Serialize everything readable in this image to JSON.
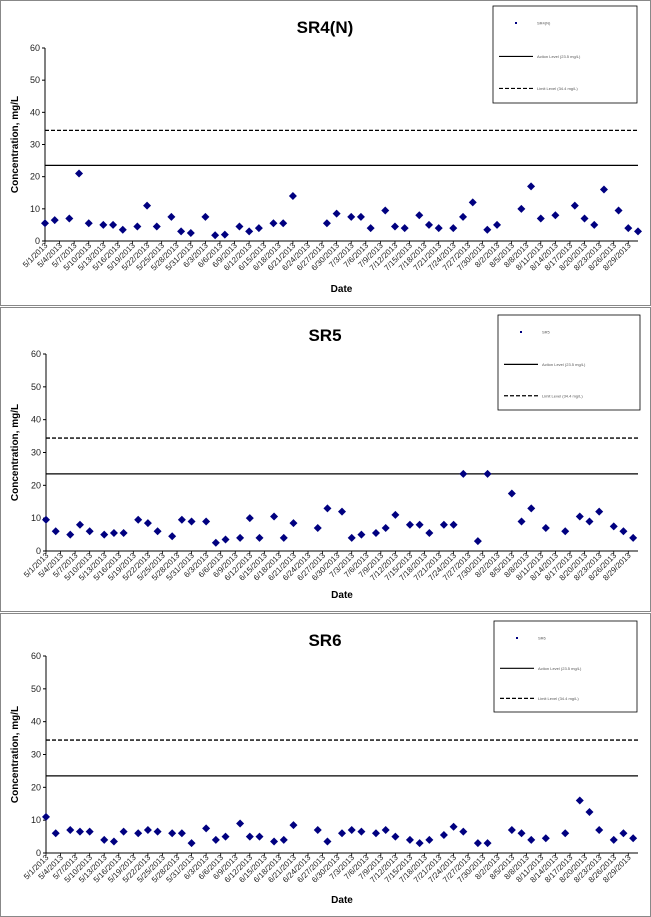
{
  "chart_data": [
    {
      "type": "scatter",
      "title": "SR4(N)",
      "xlabel": "Date",
      "ylabel": "Concentration, mg/L",
      "ylim": [
        0,
        60
      ],
      "yticks": [
        "0",
        "10",
        "20",
        "30",
        "40",
        "50",
        "60"
      ],
      "xlim": [
        "5/1/2013",
        "8/31/2013"
      ],
      "xticks": [
        "5/1/2013",
        "5/4/2013",
        "5/7/2013",
        "5/10/2013",
        "5/13/2013",
        "5/16/2013",
        "5/19/2013",
        "5/22/2013",
        "5/25/2013",
        "5/28/2013",
        "5/31/2013",
        "6/3/2013",
        "6/6/2013",
        "6/9/2013",
        "6/12/2013",
        "6/15/2013",
        "6/18/2013",
        "6/21/2013",
        "6/24/2013",
        "6/27/2013",
        "6/30/2013",
        "7/3/2013",
        "7/6/2013",
        "7/9/2013",
        "7/12/2013",
        "7/15/2013",
        "7/18/2013",
        "7/21/2013",
        "7/24/2013",
        "7/27/2013",
        "7/30/2013",
        "8/2/2013",
        "8/5/2013",
        "8/8/2013",
        "8/11/2013",
        "8/14/2013",
        "8/17/2013",
        "8/20/2013",
        "8/23/2013",
        "8/26/2013",
        "8/29/2013"
      ],
      "marker_color": "#000080",
      "legend_position": "top-right",
      "legend": [
        "SR4(N)",
        "Action Level (23.5 mg/L)",
        "Limit Level (34.4 mg/L)"
      ],
      "reference_lines": [
        {
          "value": 23.5,
          "style": "solid"
        },
        {
          "value": 34.4,
          "style": "dashed"
        }
      ],
      "series": [
        {
          "points": [
            [
              "5/1/2013",
              5.5
            ],
            [
              "5/3/2013",
              6.5
            ],
            [
              "5/6/2013",
              7
            ],
            [
              "5/8/2013",
              21
            ],
            [
              "5/10/2013",
              5.5
            ],
            [
              "5/13/2013",
              5
            ],
            [
              "5/15/2013",
              5
            ],
            [
              "5/17/2013",
              3.5
            ],
            [
              "5/20/2013",
              4.5
            ],
            [
              "5/22/2013",
              11
            ],
            [
              "5/24/2013",
              4.5
            ],
            [
              "5/27/2013",
              7.5
            ],
            [
              "5/29/2013",
              3
            ],
            [
              "5/31/2013",
              2.5
            ],
            [
              "6/3/2013",
              7.5
            ],
            [
              "6/5/2013",
              1.8
            ],
            [
              "6/7/2013",
              2
            ],
            [
              "6/10/2013",
              4.5
            ],
            [
              "6/12/2013",
              3
            ],
            [
              "6/14/2013",
              4
            ],
            [
              "6/17/2013",
              5.5
            ],
            [
              "6/19/2013",
              5.5
            ],
            [
              "6/21/2013",
              14
            ],
            [
              "6/28/2013",
              5.5
            ],
            [
              "6/30/2013",
              8.5
            ],
            [
              "7/3/2013",
              7.5
            ],
            [
              "7/5/2013",
              7.5
            ],
            [
              "7/7/2013",
              4
            ],
            [
              "7/10/2013",
              9.5
            ],
            [
              "7/12/2013",
              4.5
            ],
            [
              "7/14/2013",
              4
            ],
            [
              "7/17/2013",
              8
            ],
            [
              "7/19/2013",
              5
            ],
            [
              "7/21/2013",
              4
            ],
            [
              "7/24/2013",
              4
            ],
            [
              "7/26/2013",
              7.5
            ],
            [
              "7/28/2013",
              12
            ],
            [
              "7/31/2013",
              3.5
            ],
            [
              "8/2/2013",
              5
            ],
            [
              "8/7/2013",
              10
            ],
            [
              "8/9/2013",
              17
            ],
            [
              "8/11/2013",
              7
            ],
            [
              "8/14/2013",
              8
            ],
            [
              "8/18/2013",
              11
            ],
            [
              "8/20/2013",
              7
            ],
            [
              "8/22/2013",
              5
            ],
            [
              "8/24/2013",
              16
            ],
            [
              "8/27/2013",
              9.5
            ],
            [
              "8/29/2013",
              4
            ],
            [
              "8/31/2013",
              3
            ]
          ]
        }
      ]
    },
    {
      "type": "scatter",
      "title": "SR5",
      "xlabel": "Date",
      "ylabel": "Concentration, mg/L",
      "ylim": [
        0,
        60
      ],
      "yticks": [
        "0",
        "10",
        "20",
        "30",
        "40",
        "50",
        "60"
      ],
      "xlim": [
        "5/1/2013",
        "8/31/2013"
      ],
      "xticks": [
        "5/1/2013",
        "5/4/2013",
        "5/7/2013",
        "5/10/2013",
        "5/13/2013",
        "5/16/2013",
        "5/19/2013",
        "5/22/2013",
        "5/25/2013",
        "5/28/2013",
        "5/31/2013",
        "6/3/2013",
        "6/6/2013",
        "6/9/2013",
        "6/12/2013",
        "6/15/2013",
        "6/18/2013",
        "6/21/2013",
        "6/24/2013",
        "6/27/2013",
        "6/30/2013",
        "7/3/2013",
        "7/6/2013",
        "7/9/2013",
        "7/12/2013",
        "7/15/2013",
        "7/18/2013",
        "7/21/2013",
        "7/24/2013",
        "7/27/2013",
        "7/30/2013",
        "8/2/2013",
        "8/5/2013",
        "8/8/2013",
        "8/11/2013",
        "8/14/2013",
        "8/17/2013",
        "8/20/2013",
        "8/23/2013",
        "8/26/2013",
        "8/29/2013"
      ],
      "marker_color": "#000080",
      "legend_position": "top-right",
      "legend": [
        "SR5",
        "Action Level (23.5 mg/L)",
        "Limit Level (34.4 mg/L)"
      ],
      "reference_lines": [
        {
          "value": 23.5,
          "style": "solid"
        },
        {
          "value": 34.4,
          "style": "dashed"
        }
      ],
      "series": [
        {
          "points": [
            [
              "5/1/2013",
              9.5
            ],
            [
              "5/3/2013",
              6
            ],
            [
              "5/6/2013",
              5
            ],
            [
              "5/8/2013",
              8
            ],
            [
              "5/10/2013",
              6
            ],
            [
              "5/13/2013",
              5
            ],
            [
              "5/15/2013",
              5.5
            ],
            [
              "5/17/2013",
              5.5
            ],
            [
              "5/20/2013",
              9.5
            ],
            [
              "5/22/2013",
              8.5
            ],
            [
              "5/24/2013",
              6
            ],
            [
              "5/27/2013",
              4.5
            ],
            [
              "5/29/2013",
              9.5
            ],
            [
              "5/31/2013",
              9
            ],
            [
              "6/3/2013",
              9
            ],
            [
              "6/5/2013",
              2.5
            ],
            [
              "6/7/2013",
              3.5
            ],
            [
              "6/10/2013",
              4
            ],
            [
              "6/12/2013",
              10
            ],
            [
              "6/14/2013",
              4
            ],
            [
              "6/17/2013",
              10.5
            ],
            [
              "6/19/2013",
              4
            ],
            [
              "6/21/2013",
              8.5
            ],
            [
              "6/26/2013",
              7
            ],
            [
              "6/28/2013",
              13
            ],
            [
              "7/1/2013",
              12
            ],
            [
              "7/3/2013",
              4
            ],
            [
              "7/5/2013",
              5
            ],
            [
              "7/8/2013",
              5.5
            ],
            [
              "7/10/2013",
              7
            ],
            [
              "7/12/2013",
              11
            ],
            [
              "7/15/2013",
              8
            ],
            [
              "7/17/2013",
              8
            ],
            [
              "7/19/2013",
              5.5
            ],
            [
              "7/22/2013",
              8
            ],
            [
              "7/24/2013",
              8
            ],
            [
              "7/26/2013",
              23.5
            ],
            [
              "7/29/2013",
              3
            ],
            [
              "7/31/2013",
              23.5
            ],
            [
              "8/5/2013",
              17.5
            ],
            [
              "8/7/2013",
              9
            ],
            [
              "8/9/2013",
              13
            ],
            [
              "8/12/2013",
              7
            ],
            [
              "8/16/2013",
              6
            ],
            [
              "8/19/2013",
              10.5
            ],
            [
              "8/21/2013",
              9
            ],
            [
              "8/23/2013",
              12
            ],
            [
              "8/26/2013",
              7.5
            ],
            [
              "8/28/2013",
              6
            ],
            [
              "8/30/2013",
              4
            ]
          ]
        }
      ]
    },
    {
      "type": "scatter",
      "title": "SR6",
      "xlabel": "Date",
      "ylabel": "Concentration, mg/L",
      "ylim": [
        0,
        60
      ],
      "yticks": [
        "0",
        "10",
        "20",
        "30",
        "40",
        "50",
        "60"
      ],
      "xlim": [
        "5/1/2013",
        "8/31/2013"
      ],
      "xticks": [
        "5/1/2013",
        "5/4/2013",
        "5/7/2013",
        "5/10/2013",
        "5/13/2013",
        "5/16/2013",
        "5/19/2013",
        "5/22/2013",
        "5/25/2013",
        "5/28/2013",
        "5/31/2013",
        "6/3/2013",
        "6/6/2013",
        "6/9/2013",
        "6/12/2013",
        "6/15/2013",
        "6/18/2013",
        "6/21/2013",
        "6/24/2013",
        "6/27/2013",
        "6/30/2013",
        "7/3/2013",
        "7/6/2013",
        "7/9/2013",
        "7/12/2013",
        "7/15/2013",
        "7/18/2013",
        "7/21/2013",
        "7/24/2013",
        "7/27/2013",
        "7/30/2013",
        "8/2/2013",
        "8/5/2013",
        "8/8/2013",
        "8/11/2013",
        "8/14/2013",
        "8/17/2013",
        "8/20/2013",
        "8/23/2013",
        "8/26/2013",
        "8/29/2013"
      ],
      "marker_color": "#000080",
      "legend_position": "top-right",
      "legend": [
        "SR6",
        "Action Level (23.5 mg/L)",
        "Limit Level (34.4 mg/L)"
      ],
      "reference_lines": [
        {
          "value": 23.5,
          "style": "solid"
        },
        {
          "value": 34.4,
          "style": "dashed"
        }
      ],
      "series": [
        {
          "points": [
            [
              "5/1/2013",
              11
            ],
            [
              "5/3/2013",
              6
            ],
            [
              "5/6/2013",
              7
            ],
            [
              "5/8/2013",
              6.5
            ],
            [
              "5/10/2013",
              6.5
            ],
            [
              "5/13/2013",
              4
            ],
            [
              "5/15/2013",
              3.5
            ],
            [
              "5/17/2013",
              6.5
            ],
            [
              "5/20/2013",
              6
            ],
            [
              "5/22/2013",
              7
            ],
            [
              "5/24/2013",
              6.5
            ],
            [
              "5/27/2013",
              6
            ],
            [
              "5/29/2013",
              6
            ],
            [
              "5/31/2013",
              3
            ],
            [
              "6/3/2013",
              7.5
            ],
            [
              "6/5/2013",
              4
            ],
            [
              "6/7/2013",
              5
            ],
            [
              "6/10/2013",
              9
            ],
            [
              "6/12/2013",
              5
            ],
            [
              "6/14/2013",
              5
            ],
            [
              "6/17/2013",
              3.5
            ],
            [
              "6/19/2013",
              4
            ],
            [
              "6/21/2013",
              8.5
            ],
            [
              "6/26/2013",
              7
            ],
            [
              "6/28/2013",
              3.5
            ],
            [
              "7/1/2013",
              6
            ],
            [
              "7/3/2013",
              7
            ],
            [
              "7/5/2013",
              6.5
            ],
            [
              "7/8/2013",
              6
            ],
            [
              "7/10/2013",
              7
            ],
            [
              "7/12/2013",
              5
            ],
            [
              "7/15/2013",
              4
            ],
            [
              "7/17/2013",
              3
            ],
            [
              "7/19/2013",
              4
            ],
            [
              "7/22/2013",
              5.5
            ],
            [
              "7/24/2013",
              8
            ],
            [
              "7/26/2013",
              6.5
            ],
            [
              "7/29/2013",
              3
            ],
            [
              "7/31/2013",
              3
            ],
            [
              "8/5/2013",
              7
            ],
            [
              "8/7/2013",
              6
            ],
            [
              "8/9/2013",
              4
            ],
            [
              "8/12/2013",
              4.5
            ],
            [
              "8/16/2013",
              6
            ],
            [
              "8/19/2013",
              16
            ],
            [
              "8/21/2013",
              12.5
            ],
            [
              "8/23/2013",
              7
            ],
            [
              "8/26/2013",
              4
            ],
            [
              "8/28/2013",
              6
            ],
            [
              "8/30/2013",
              4.5
            ]
          ]
        }
      ]
    }
  ]
}
